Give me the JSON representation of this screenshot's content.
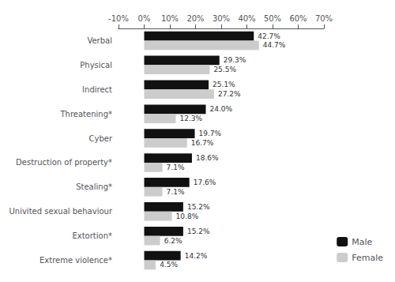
{
  "chart_data": {
    "type": "bar",
    "orientation": "horizontal",
    "categories": [
      "Verbal",
      "Physical",
      "Indirect",
      "Threatening*",
      "Cyber",
      "Destruction of property*",
      "Stealing*",
      "Univited sexual behaviour",
      "Extortion*",
      "Extreme violence*"
    ],
    "series": [
      {
        "name": "Male",
        "color": "#111111",
        "values": [
          42.7,
          29.3,
          25.1,
          24.0,
          19.7,
          18.6,
          17.6,
          15.2,
          15.2,
          14.2
        ],
        "value_labels": [
          "42.7%",
          "29.3%",
          "25.1%",
          "24.0%",
          "19.7%",
          "18.6%",
          "17.6%",
          "15.2%",
          "15.2%",
          "14.2%"
        ]
      },
      {
        "name": "Female",
        "color": "#cccccc",
        "values": [
          44.7,
          25.5,
          27.2,
          12.3,
          16.7,
          7.1,
          7.1,
          10.8,
          6.2,
          4.5
        ],
        "value_labels": [
          "44.7%",
          "25.5%",
          "27.2%",
          "12.3%",
          "16.7%",
          "7.1%",
          "7.1%",
          "10.8%",
          "6.2%",
          "4.5%"
        ]
      }
    ],
    "xlim": [
      -10,
      70
    ],
    "xticks": [
      {
        "value": -10,
        "label": "-10%"
      },
      {
        "value": 0,
        "label": "0%"
      },
      {
        "value": 10,
        "label": "10%"
      },
      {
        "value": 20,
        "label": "20%"
      },
      {
        "value": 30,
        "label": "30%"
      },
      {
        "value": 40,
        "label": "40%"
      },
      {
        "value": 50,
        "label": "50%"
      },
      {
        "value": 60,
        "label": "60%"
      },
      {
        "value": 70,
        "label": "70%"
      }
    ],
    "data_labels": true,
    "legend": "lower right",
    "grid": false
  }
}
